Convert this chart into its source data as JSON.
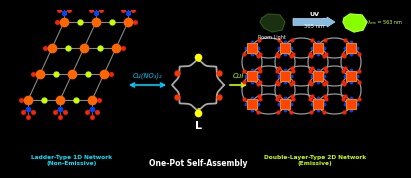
{
  "bg_color": "#000000",
  "title_left_1": "Ladder-Type 1D Network",
  "title_left_2": "(Non-Emissive)",
  "title_center": "One-Pot Self-Assembly",
  "title_right_1": "Double-Layer-Type 2D Network",
  "title_right_2": "(Emissive)",
  "label_L": "L",
  "label_cu_left": "Cu(NO₃)₂",
  "label_cu_right": "CuI",
  "label_uv": "UV",
  "label_365": "365 nm",
  "label_em": "λₑₘ = 563 nm",
  "label_room": "Room Light",
  "color_left_title": "#00e5ff",
  "color_right_title": "#ccff00",
  "color_center_title": "#ffffff",
  "color_cu_left": "#00ccff",
  "color_cu_right": "#ccff00",
  "color_uv_label": "#ffffff",
  "color_365": "#88ccff",
  "color_arrow_left": "#00ccff",
  "color_arrow_right": "#ccff00",
  "cu_color_left": "#ff6600",
  "cu_color_right": "#ff4400",
  "s_color_left": "#ccff00",
  "s_color_right": "#ccff00",
  "o_color": "#ff2200",
  "n_color": "#0044ff",
  "bond_color": "#888888",
  "chain_color": "#999999",
  "macro_chain": "#aaaaaa",
  "macro_S": "#ffff00",
  "macro_O": "#ff3300"
}
